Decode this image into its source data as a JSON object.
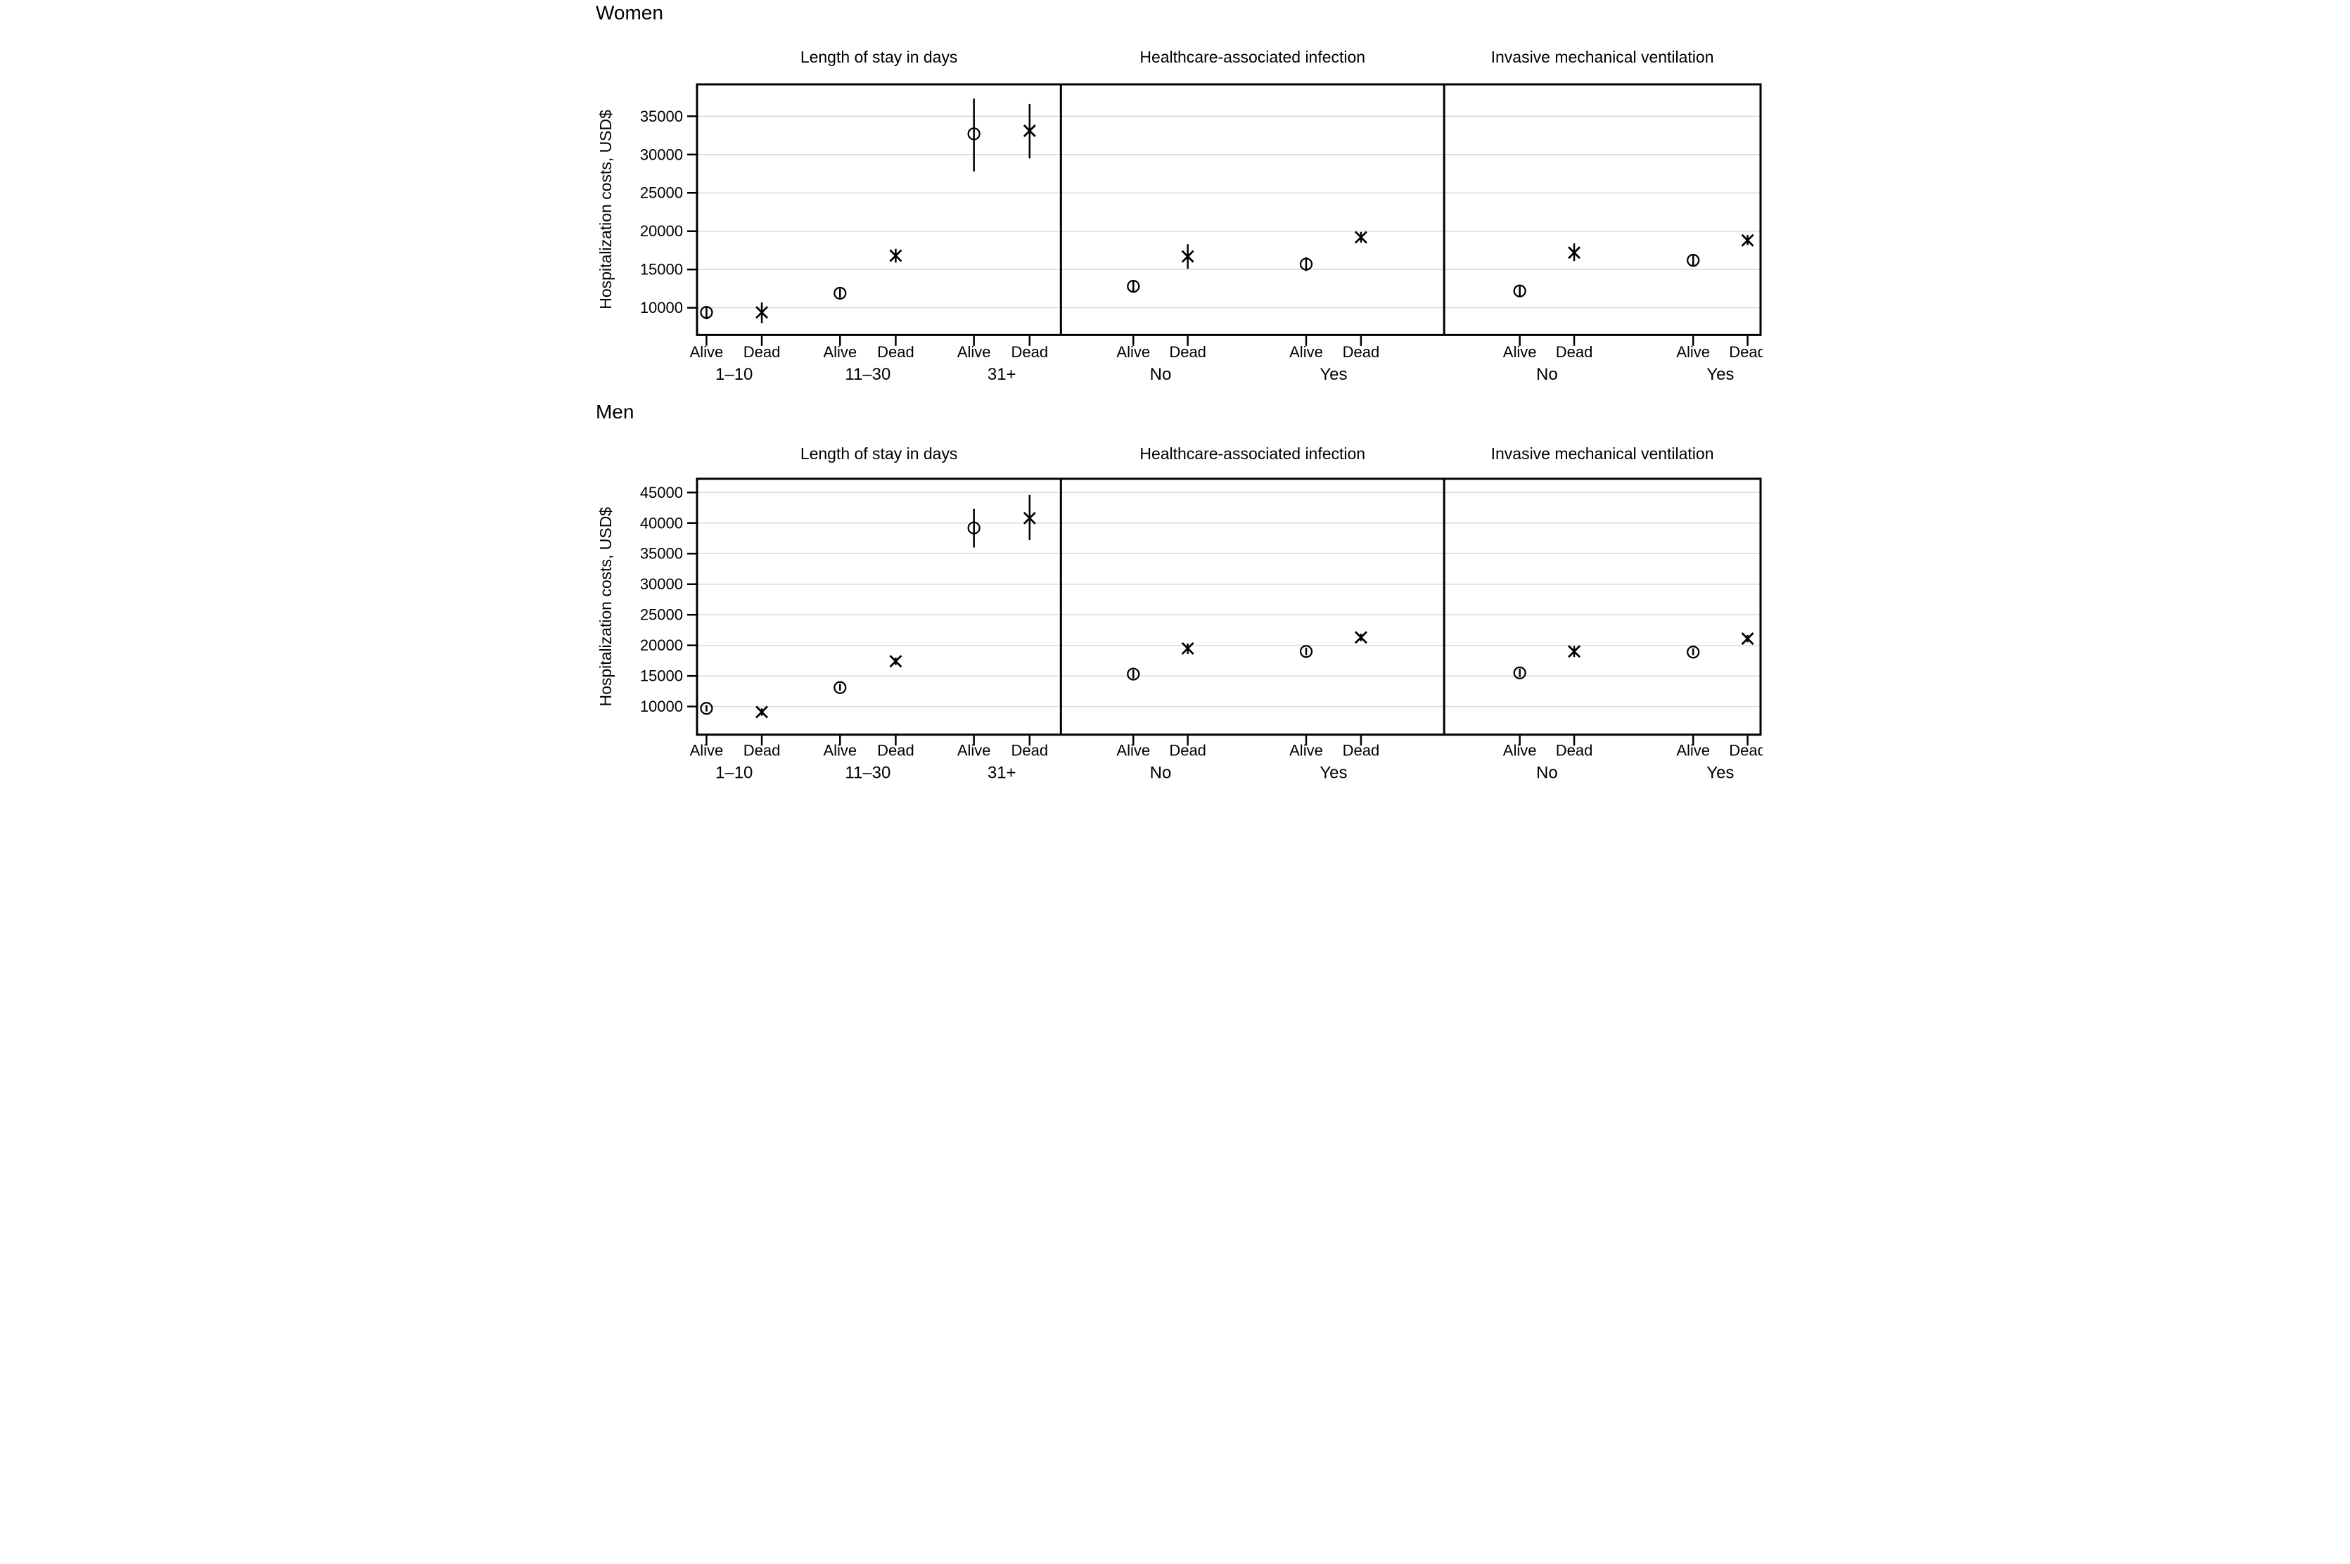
{
  "figure": {
    "background": "#ffffff",
    "text_color": "#000000",
    "grid_color": "#d9d9d9",
    "marker_color": "#000000",
    "row_titles": [
      "Women",
      "Men"
    ],
    "marker_key": [
      {
        "status": "Alive",
        "marker": "circle"
      },
      {
        "status": "Dead",
        "marker": "x"
      }
    ]
  },
  "chart_data": [
    {
      "type": "scatter",
      "row_title": "Women",
      "ylabel": "Hospitalization costs, USD$",
      "ylim": [
        6450,
        39160
      ],
      "yticks": [
        10000,
        15000,
        20000,
        25000,
        30000,
        35000
      ],
      "grid": true,
      "legend_position": "none",
      "panels": [
        {
          "title": "Length of stay in days",
          "groups": [
            "1–10",
            "11–30",
            "31+"
          ],
          "points": [
            {
              "group": "1–10",
              "status": "Alive",
              "marker": "circle",
              "x_frac": 0.026,
              "y": 9400,
              "ci": [
                8500,
                10200
              ]
            },
            {
              "group": "1–10",
              "status": "Dead",
              "marker": "x",
              "x_frac": 0.178,
              "y": 9400,
              "ci": [
                8000,
                10700
              ]
            },
            {
              "group": "11–30",
              "status": "Alive",
              "marker": "circle",
              "x_frac": 0.393,
              "y": 11900,
              "ci": [
                11300,
                12500
              ]
            },
            {
              "group": "11–30",
              "status": "Dead",
              "marker": "x",
              "x_frac": 0.546,
              "y": 16800,
              "ci": [
                15900,
                17700
              ]
            },
            {
              "group": "31+",
              "status": "Alive",
              "marker": "circle",
              "x_frac": 0.761,
              "y": 32700,
              "ci": [
                27800,
                37300
              ]
            },
            {
              "group": "31+",
              "status": "Dead",
              "marker": "x",
              "x_frac": 0.914,
              "y": 33100,
              "ci": [
                29500,
                36600
              ]
            }
          ]
        },
        {
          "title": "Healthcare-associated infection",
          "groups": [
            "No",
            "Yes"
          ],
          "points": [
            {
              "group": "No",
              "status": "Alive",
              "marker": "circle",
              "x_frac": 0.189,
              "y": 12800,
              "ci": [
                12100,
                13500
              ]
            },
            {
              "group": "No",
              "status": "Dead",
              "marker": "x",
              "x_frac": 0.331,
              "y": 16700,
              "ci": [
                15100,
                18300
              ]
            },
            {
              "group": "Yes",
              "status": "Alive",
              "marker": "circle",
              "x_frac": 0.64,
              "y": 15700,
              "ci": [
                14800,
                16600
              ]
            },
            {
              "group": "Yes",
              "status": "Dead",
              "marker": "x",
              "x_frac": 0.783,
              "y": 19200,
              "ci": [
                18500,
                19900
              ]
            }
          ]
        },
        {
          "title": "Invasive mechanical ventilation",
          "groups": [
            "No",
            "Yes"
          ],
          "points": [
            {
              "group": "No",
              "status": "Alive",
              "marker": "circle",
              "x_frac": 0.239,
              "y": 12200,
              "ci": [
                11500,
                12900
              ]
            },
            {
              "group": "No",
              "status": "Dead",
              "marker": "x",
              "x_frac": 0.411,
              "y": 17200,
              "ci": [
                16100,
                18400
              ]
            },
            {
              "group": "Yes",
              "status": "Alive",
              "marker": "circle",
              "x_frac": 0.787,
              "y": 16200,
              "ci": [
                15400,
                17000
              ]
            },
            {
              "group": "Yes",
              "status": "Dead",
              "marker": "x",
              "x_frac": 0.959,
              "y": 18800,
              "ci": [
                18200,
                19500
              ]
            }
          ]
        }
      ]
    },
    {
      "type": "scatter",
      "row_title": "Men",
      "ylabel": "Hospitalization costs, USD$",
      "ylim": [
        5400,
        47240
      ],
      "yticks": [
        10000,
        15000,
        20000,
        25000,
        30000,
        35000,
        40000,
        45000
      ],
      "grid": true,
      "legend_position": "none",
      "panels": [
        {
          "title": "Length of stay in days",
          "groups": [
            "1–10",
            "11–30",
            "31+"
          ],
          "points": [
            {
              "group": "1–10",
              "status": "Alive",
              "marker": "circle",
              "x_frac": 0.026,
              "y": 9700,
              "ci": [
                9200,
                10200
              ]
            },
            {
              "group": "1–10",
              "status": "Dead",
              "marker": "x",
              "x_frac": 0.178,
              "y": 9100,
              "ci": [
                8500,
                9700
              ]
            },
            {
              "group": "11–30",
              "status": "Alive",
              "marker": "circle",
              "x_frac": 0.393,
              "y": 13100,
              "ci": [
                12600,
                13700
              ]
            },
            {
              "group": "11–30",
              "status": "Dead",
              "marker": "x",
              "x_frac": 0.546,
              "y": 17400,
              "ci": [
                16800,
                18000
              ]
            },
            {
              "group": "31+",
              "status": "Alive",
              "marker": "circle",
              "x_frac": 0.761,
              "y": 39200,
              "ci": [
                36000,
                42300
              ]
            },
            {
              "group": "31+",
              "status": "Dead",
              "marker": "x",
              "x_frac": 0.914,
              "y": 40800,
              "ci": [
                37200,
                44600
              ]
            }
          ]
        },
        {
          "title": "Healthcare-associated infection",
          "groups": [
            "No",
            "Yes"
          ],
          "points": [
            {
              "group": "No",
              "status": "Alive",
              "marker": "circle",
              "x_frac": 0.189,
              "y": 15300,
              "ci": [
                14600,
                16000
              ]
            },
            {
              "group": "No",
              "status": "Dead",
              "marker": "x",
              "x_frac": 0.331,
              "y": 19500,
              "ci": [
                18600,
                20300
              ]
            },
            {
              "group": "Yes",
              "status": "Alive",
              "marker": "circle",
              "x_frac": 0.64,
              "y": 19000,
              "ci": [
                18400,
                19600
              ]
            },
            {
              "group": "Yes",
              "status": "Dead",
              "marker": "x",
              "x_frac": 0.783,
              "y": 21300,
              "ci": [
                20700,
                21900
              ]
            }
          ]
        },
        {
          "title": "Invasive mechanical ventilation",
          "groups": [
            "No",
            "Yes"
          ],
          "points": [
            {
              "group": "No",
              "status": "Alive",
              "marker": "circle",
              "x_frac": 0.239,
              "y": 15500,
              "ci": [
                14800,
                16200
              ]
            },
            {
              "group": "No",
              "status": "Dead",
              "marker": "x",
              "x_frac": 0.411,
              "y": 19000,
              "ci": [
                18100,
                19900
              ]
            },
            {
              "group": "Yes",
              "status": "Alive",
              "marker": "circle",
              "x_frac": 0.787,
              "y": 18900,
              "ci": [
                18400,
                19500
              ]
            },
            {
              "group": "Yes",
              "status": "Dead",
              "marker": "x",
              "x_frac": 0.959,
              "y": 21100,
              "ci": [
                20500,
                21700
              ]
            }
          ]
        }
      ]
    }
  ]
}
